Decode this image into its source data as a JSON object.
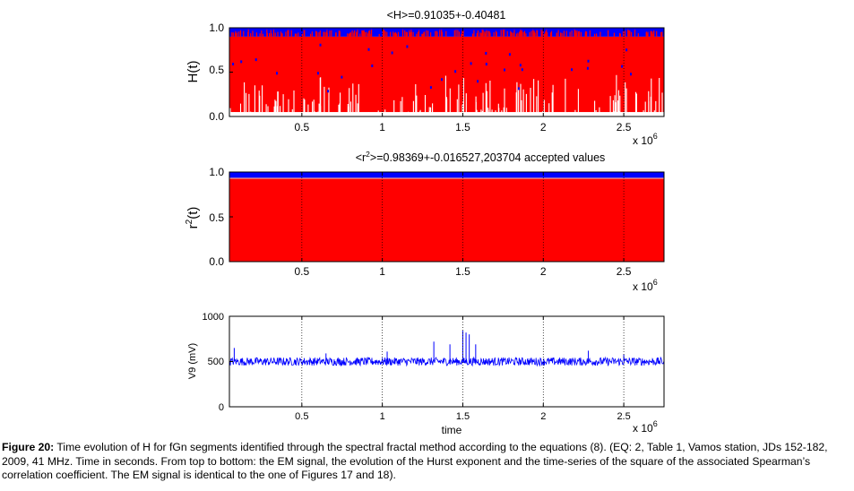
{
  "caption": {
    "label": "Figure 20:",
    "text": "Time evolution of H for fGn segments identified through the spectral fractal method according to the equations (8). (EQ: 2, Table 1, Vamos station, JDs 152-182, 2009, 41 MHz. Time in seconds. From top to bottom: the EM signal, the evolution of the Hurst exponent and the time-series of the square of the associated Spearman’s correlation coefficient. The EM signal is identical to the one of Figures 17 and 18)."
  },
  "colors": {
    "red": "#ff0000",
    "blue": "#0000ff",
    "axis": "#000000"
  },
  "chart_data": [
    {
      "type": "scatter",
      "title": "<H>=0.91035+-0.40481",
      "ylabel": "H(t)",
      "xlim": [
        0.05,
        2.75
      ],
      "ylim": [
        0,
        1
      ],
      "x_ticks": [
        "0.5",
        "1",
        "1.5",
        "2",
        "2.5"
      ],
      "y_ticks": [
        "0.0",
        "0.5",
        "1.0"
      ],
      "x_multiplier": "x 10",
      "x_exponent": "6",
      "grid": "vertical dotted",
      "series": [
        {
          "color": "red",
          "band": [
            0.05,
            0.9
          ]
        },
        {
          "color": "blue",
          "band": [
            0.9,
            1.0
          ]
        }
      ]
    },
    {
      "type": "scatter",
      "title_prefix": "<r",
      "title_sup": "2",
      "title_suffix": ">=0.98369+-0.016527,203704 accepted values",
      "ylabel": "r",
      "ylabel_sup": "2",
      "ylabel_suffix": "(t)",
      "xlim": [
        0.05,
        2.75
      ],
      "ylim": [
        0,
        1
      ],
      "x_ticks": [
        "0.5",
        "1",
        "1.5",
        "2",
        "2.5"
      ],
      "y_ticks": [
        "0.0",
        "0.5",
        "1.0"
      ],
      "x_multiplier": "x 10",
      "x_exponent": "6",
      "grid": "vertical dotted",
      "series": [
        {
          "color": "red",
          "band": [
            0.0,
            0.93
          ]
        },
        {
          "color": "blue",
          "band": [
            0.93,
            1.0
          ]
        }
      ]
    },
    {
      "type": "line",
      "ylabel": "V9 (mV)",
      "xlabel": "time",
      "xlim": [
        0.05,
        2.75
      ],
      "ylim": [
        0,
        1000
      ],
      "x_ticks": [
        "0.5",
        "1",
        "1.5",
        "2",
        "2.5"
      ],
      "y_ticks": [
        "0",
        "500",
        "1000"
      ],
      "x_multiplier": "x 10",
      "x_exponent": "6",
      "grid": "vertical dotted",
      "series": [
        {
          "color": "blue",
          "baseline": 500,
          "noise": 45,
          "spikes": [
            [
              0.08,
              650
            ],
            [
              0.65,
              590
            ],
            [
              1.03,
              610
            ],
            [
              1.32,
              720
            ],
            [
              1.42,
              690
            ],
            [
              1.5,
              840
            ],
            [
              1.52,
              820
            ],
            [
              1.54,
              800
            ],
            [
              1.58,
              690
            ],
            [
              2.28,
              620
            ],
            [
              2.5,
              580
            ]
          ]
        }
      ]
    }
  ]
}
